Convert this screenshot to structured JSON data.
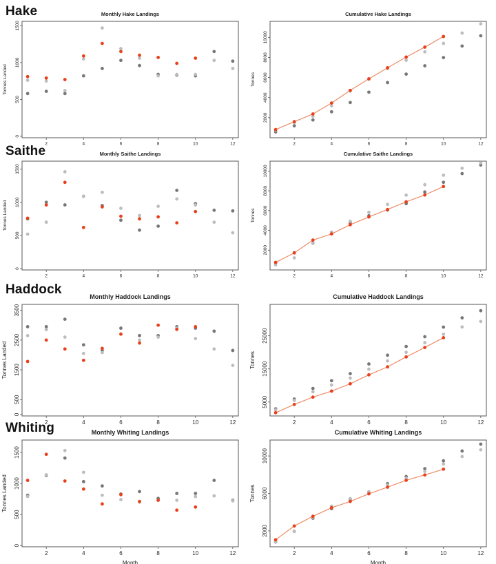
{
  "colors": {
    "current": "#e8401c",
    "mid": "#777777",
    "light": "#bdbdbd",
    "line": "#ef8a66"
  },
  "chart_data": [
    {
      "id": "hake-monthly",
      "species": "Hake",
      "type": "scatter",
      "title": "Monthly Hake Landings",
      "ylabel": "Tonnes Landed",
      "xlabel": "",
      "xlim": [
        0.7,
        12.3
      ],
      "ylim": [
        -20,
        1560
      ],
      "xticks": [
        "2",
        "4",
        "6",
        "8",
        "10",
        "12"
      ],
      "yticks": [
        "0",
        "500",
        "1000",
        "1500"
      ],
      "series": [
        {
          "x": [
            1,
            2,
            3,
            4,
            5,
            6,
            7,
            8,
            9,
            10,
            11,
            12
          ],
          "y": [
            580,
            610,
            580,
            820,
            920,
            1030,
            960,
            840,
            830,
            820,
            1150,
            1020
          ],
          "color": "mid"
        },
        {
          "x": [
            1,
            2,
            3,
            4,
            5,
            6,
            7,
            8,
            9,
            10,
            11,
            12
          ],
          "y": [
            760,
            750,
            620,
            1050,
            1470,
            1190,
            1060,
            820,
            840,
            840,
            1030,
            920
          ],
          "color": "light"
        },
        {
          "x": [
            1,
            2,
            3,
            4,
            5,
            6,
            7,
            8,
            9,
            10
          ],
          "y": [
            810,
            790,
            770,
            1090,
            1260,
            1150,
            1100,
            1070,
            990,
            1060
          ],
          "color": "current"
        }
      ]
    },
    {
      "id": "hake-cumulative",
      "species": "Hake",
      "type": "line",
      "title": "Cumulative Hake Landings",
      "ylabel": "Tonnes",
      "xlabel": "",
      "xlim": [
        0.7,
        12.3
      ],
      "ylim": [
        0,
        11600
      ],
      "xticks": [
        "2",
        "4",
        "6",
        "8",
        "10",
        "12"
      ],
      "yticks": [
        "2000",
        "4000",
        "6000",
        "8000",
        "10000"
      ],
      "series": [
        {
          "x": [
            1,
            2,
            3,
            4,
            5,
            6,
            7,
            8,
            9,
            10,
            11,
            12
          ],
          "y": [
            580,
            1190,
            1770,
            2590,
            3510,
            4540,
            5500,
            6340,
            7170,
            7990,
            9140,
            10160
          ],
          "color": "mid"
        },
        {
          "x": [
            1,
            2,
            3,
            4,
            5,
            6,
            7,
            8,
            9,
            10,
            11,
            12
          ],
          "y": [
            760,
            1510,
            2130,
            3180,
            4650,
            5840,
            6900,
            7720,
            8560,
            9400,
            10430,
            11350
          ],
          "color": "light"
        },
        {
          "x": [
            1,
            2,
            3,
            4,
            5,
            6,
            7,
            8,
            9,
            10
          ],
          "y": [
            810,
            1600,
            2370,
            3460,
            4720,
            5870,
            6970,
            8040,
            9030,
            10090
          ],
          "color": "current",
          "line": true
        }
      ]
    },
    {
      "id": "saithe-monthly",
      "species": "Saithe",
      "type": "scatter",
      "title": "Monthly Saithe Landings",
      "ylabel": "Tonnes Landed",
      "xlabel": "",
      "xlim": [
        0.7,
        12.3
      ],
      "ylim": [
        -20,
        1620
      ],
      "xticks": [
        "2",
        "4",
        "6",
        "8",
        "10",
        "12"
      ],
      "yticks": [
        "0",
        "500",
        "1000",
        "1500"
      ],
      "series": [
        {
          "x": [
            1,
            2,
            3,
            4,
            5,
            6,
            7,
            8,
            9,
            10,
            11,
            12
          ],
          "y": [
            750,
            1000,
            960,
            1090,
            950,
            730,
            580,
            640,
            1180,
            980,
            880,
            870
          ],
          "color": "mid"
        },
        {
          "x": [
            1,
            2,
            3,
            4,
            5,
            6,
            7,
            8,
            9,
            10,
            11,
            12
          ],
          "y": [
            520,
            700,
            1460,
            1090,
            1150,
            910,
            800,
            940,
            1050,
            960,
            700,
            540
          ],
          "color": "light"
        },
        {
          "x": [
            1,
            2,
            3,
            4,
            5,
            6,
            7,
            8,
            9,
            10
          ],
          "y": [
            760,
            960,
            1300,
            620,
            930,
            790,
            750,
            780,
            690,
            860
          ],
          "color": "current"
        }
      ]
    },
    {
      "id": "saithe-cumulative",
      "species": "Saithe",
      "type": "line",
      "title": "Cumulative Saithe Landings",
      "ylabel": "Tonnes",
      "xlabel": "",
      "xlim": [
        0.7,
        12.3
      ],
      "ylim": [
        0,
        11000
      ],
      "xticks": [
        "2",
        "4",
        "6",
        "8",
        "10",
        "12"
      ],
      "yticks": [
        "2000",
        "4000",
        "6000",
        "8000",
        "10000"
      ],
      "series": [
        {
          "x": [
            1,
            2,
            3,
            4,
            5,
            6,
            7,
            8,
            9,
            10,
            11,
            12
          ],
          "y": [
            750,
            1750,
            2710,
            3800,
            4750,
            5480,
            6060,
            6700,
            7880,
            8860,
            9740,
            10610
          ],
          "color": "mid"
        },
        {
          "x": [
            1,
            2,
            3,
            4,
            5,
            6,
            7,
            8,
            9,
            10,
            11,
            12
          ],
          "y": [
            520,
            1220,
            2680,
            3770,
            4920,
            5830,
            6630,
            7570,
            8620,
            9580,
            10280,
            10820
          ],
          "color": "light"
        },
        {
          "x": [
            1,
            2,
            3,
            4,
            5,
            6,
            7,
            8,
            9,
            10
          ],
          "y": [
            760,
            1720,
            3020,
            3640,
            4570,
            5360,
            6110,
            6890,
            7580,
            8440
          ],
          "color": "current",
          "line": true
        }
      ]
    },
    {
      "id": "haddock-monthly",
      "species": "Haddock",
      "type": "scatter",
      "title": "Monthly Haddock Landings",
      "ylabel": "Tonnes Landed",
      "xlabel": "",
      "xlim": [
        0.7,
        12.3
      ],
      "ylim": [
        -50,
        3700
      ],
      "xticks": [
        "2",
        "4",
        "6",
        "8",
        "10",
        "12"
      ],
      "yticks": [
        "0",
        "500",
        "1500",
        "2500",
        "3500"
      ],
      "series": [
        {
          "x": [
            1,
            2,
            3,
            4,
            5,
            6,
            7,
            8,
            9,
            10,
            11,
            12
          ],
          "y": [
            2950,
            2950,
            3200,
            2340,
            2150,
            2900,
            2650,
            2650,
            2950,
            2900,
            2800,
            2150
          ],
          "color": "mid"
        },
        {
          "x": [
            1,
            2,
            3,
            4,
            5,
            6,
            7,
            8,
            9,
            10,
            11,
            12
          ],
          "y": [
            2650,
            2850,
            2600,
            2050,
            2080,
            2700,
            2500,
            2600,
            2900,
            2550,
            2200,
            1650
          ],
          "color": "light"
        },
        {
          "x": [
            1,
            2,
            3,
            4,
            5,
            6,
            7,
            8,
            9,
            10
          ],
          "y": [
            1780,
            2500,
            2200,
            1820,
            2220,
            2700,
            2400,
            3000,
            2860,
            2950
          ],
          "color": "current"
        }
      ]
    },
    {
      "id": "haddock-cumulative",
      "species": "Haddock",
      "type": "line",
      "title": "Cumulative Haddock Landings",
      "ylabel": "Tonnes",
      "xlabel": "",
      "xlim": [
        0.7,
        12.3
      ],
      "ylim": [
        800,
        34500
      ],
      "xticks": [
        "2",
        "4",
        "6",
        "8",
        "10",
        "12"
      ],
      "yticks": [
        "5000",
        "15000",
        "25000"
      ],
      "series": [
        {
          "x": [
            1,
            2,
            3,
            4,
            5,
            6,
            7,
            8,
            9,
            10,
            11,
            12
          ],
          "y": [
            2950,
            5900,
            9100,
            11440,
            13590,
            16490,
            19140,
            21790,
            24740,
            27640,
            30440,
            32590
          ],
          "color": "mid"
        },
        {
          "x": [
            1,
            2,
            3,
            4,
            5,
            6,
            7,
            8,
            9,
            10,
            11,
            12
          ],
          "y": [
            2650,
            5500,
            8100,
            10150,
            12230,
            14930,
            17430,
            20030,
            22930,
            25480,
            27680,
            29330
          ],
          "color": "light"
        },
        {
          "x": [
            1,
            2,
            3,
            4,
            5,
            6,
            7,
            8,
            9,
            10
          ],
          "y": [
            1780,
            4280,
            6480,
            8300,
            10520,
            13220,
            15620,
            18620,
            21480,
            24430
          ],
          "color": "current",
          "line": true
        }
      ]
    },
    {
      "id": "whiting-monthly",
      "species": "Whiting",
      "type": "scatter",
      "title": "Monthly Whiting Landings",
      "ylabel": "Tonnes Landed",
      "xlabel": "Month",
      "xlim": [
        0.7,
        12.3
      ],
      "ylim": [
        -20,
        1700
      ],
      "xticks": [
        "2",
        "4",
        "6",
        "8",
        "10",
        "12"
      ],
      "yticks": [
        "0",
        "500",
        "1000",
        "1500"
      ],
      "series": [
        {
          "x": [
            1,
            2,
            3,
            4,
            5,
            6,
            7,
            8,
            9,
            10,
            11,
            12
          ],
          "y": [
            810,
            1130,
            1410,
            1030,
            960,
            830,
            870,
            760,
            840,
            840,
            1050,
            730
          ],
          "color": "mid"
        },
        {
          "x": [
            1,
            2,
            3,
            4,
            5,
            6,
            7,
            8,
            9,
            10,
            11,
            12
          ],
          "y": [
            790,
            1140,
            1530,
            1180,
            810,
            740,
            700,
            730,
            730,
            790,
            800,
            720
          ],
          "color": "light"
        },
        {
          "x": [
            1,
            2,
            3,
            4,
            5,
            6,
            7,
            8,
            9,
            10
          ],
          "y": [
            1050,
            1470,
            1040,
            910,
            670,
            820,
            710,
            730,
            570,
            620
          ],
          "color": "current"
        }
      ]
    },
    {
      "id": "whiting-cumulative",
      "species": "Whiting",
      "type": "line",
      "title": "Cumulative Whiting Landings",
      "ylabel": "Tonnes",
      "xlabel": "Month",
      "xlim": [
        0.7,
        12.3
      ],
      "ylim": [
        300,
        11700
      ],
      "xticks": [
        "2",
        "4",
        "6",
        "8",
        "10",
        "12"
      ],
      "yticks": [
        "2000",
        "6000",
        "10000"
      ],
      "series": [
        {
          "x": [
            1,
            2,
            3,
            4,
            5,
            6,
            7,
            8,
            9,
            10,
            11,
            12
          ],
          "y": [
            810,
            1940,
            3350,
            4380,
            5340,
            6170,
            7040,
            7800,
            8640,
            9480,
            10530,
            11260
          ],
          "color": "mid"
        },
        {
          "x": [
            1,
            2,
            3,
            4,
            5,
            6,
            7,
            8,
            9,
            10,
            11,
            12
          ],
          "y": [
            790,
            1930,
            3460,
            4640,
            5450,
            6190,
            6890,
            7620,
            8350,
            9140,
            9940,
            10660
          ],
          "color": "light"
        },
        {
          "x": [
            1,
            2,
            3,
            4,
            5,
            6,
            7,
            8,
            9,
            10
          ],
          "y": [
            1050,
            2520,
            3560,
            4470,
            5140,
            5960,
            6670,
            7400,
            7970,
            8590
          ],
          "color": "current",
          "line": true
        }
      ]
    }
  ]
}
